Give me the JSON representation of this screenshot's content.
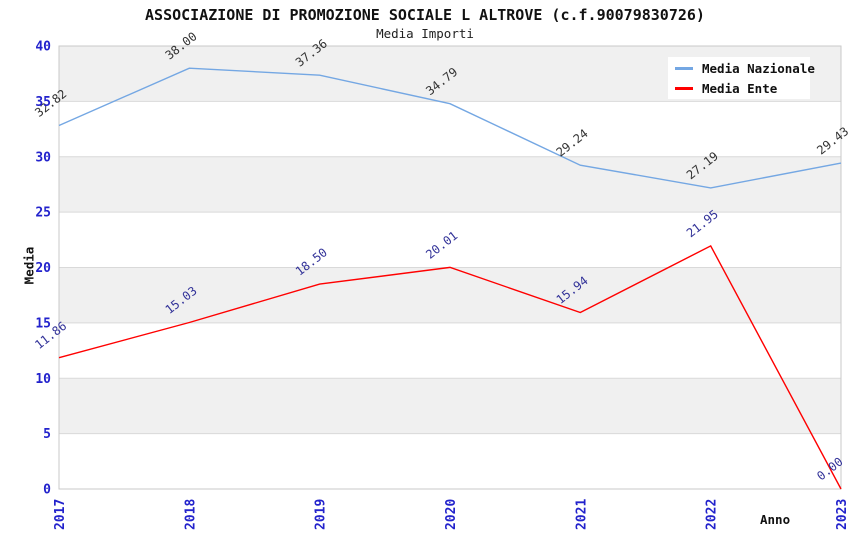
{
  "chart_data": {
    "type": "line",
    "title": "ASSOCIAZIONE DI PROMOZIONE SOCIALE L ALTROVE (c.f.90079830726)",
    "subtitle": "Media Importi",
    "xlabel": "Anno",
    "ylabel": "Media",
    "x": [
      "2017",
      "2018",
      "2019",
      "2020",
      "2021",
      "2022",
      "2023"
    ],
    "series": [
      {
        "name": "Media Nazionale",
        "color": "#74a7e3",
        "label_color": "#333333",
        "values": [
          32.82,
          38.0,
          37.36,
          34.79,
          29.24,
          27.19,
          29.43
        ]
      },
      {
        "name": "Media Ente",
        "color": "#ff0000",
        "label_color": "#333399",
        "values": [
          11.86,
          15.03,
          18.5,
          20.01,
          15.94,
          21.95,
          0.0
        ]
      }
    ],
    "ylim": [
      0,
      40
    ],
    "ytick_step": 5,
    "yticks": [
      0,
      5,
      10,
      15,
      20,
      25,
      30,
      35,
      40
    ],
    "grid": "horizontal-alternating-bands",
    "legend_position": "top-right",
    "tick_label_color": "#2222cc",
    "band_color": "#f0f0f0",
    "gridline_color": "#d9d9d9",
    "plot_border_color": "#c9c9c9",
    "value_label_decimals": 2
  }
}
